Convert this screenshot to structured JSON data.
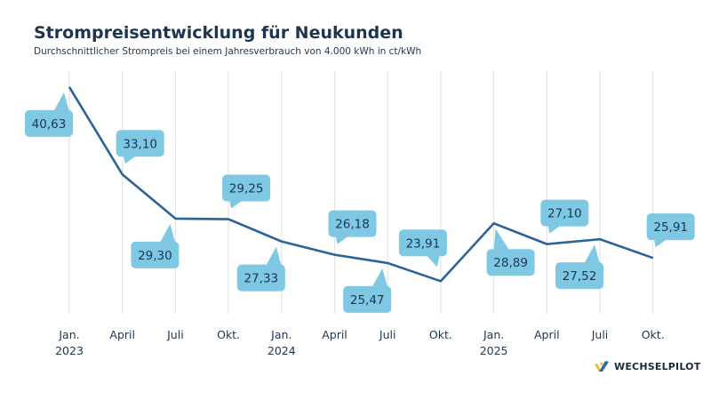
{
  "title": "Strompreisentwicklung für Neukunden",
  "subtitle": "Durchschnittlicher Strompreis bei einem Jahresverbrauch von 4.000 kWh in ct/kWh",
  "brand": {
    "name": "WECHSELPILOT",
    "colors": {
      "yellow": "#f5b82e",
      "blue": "#2a6cb3"
    }
  },
  "colors": {
    "line": "#2a6496",
    "callout": "#7ec8e3",
    "callout_text": "#1e3550",
    "grid": "#e3e3e3"
  },
  "chart_data": {
    "type": "line",
    "title": "Strompreisentwicklung für Neukunden",
    "subtitle": "Durchschnittlicher Strompreis bei einem Jahresverbrauch von 4.000 kWh in ct/kWh",
    "categories": [
      "Jan. 2023",
      "April",
      "Juli",
      "Okt.",
      "Jan. 2024",
      "April",
      "Juli",
      "Okt.",
      "Jan. 2025",
      "April",
      "Juli",
      "Okt."
    ],
    "tick_labels": [
      [
        "Jan.",
        "2023"
      ],
      [
        "April"
      ],
      [
        "Juli"
      ],
      [
        "Okt."
      ],
      [
        "Jan.",
        "2024"
      ],
      [
        "April"
      ],
      [
        "Juli"
      ],
      [
        "Okt."
      ],
      [
        "Jan.",
        "2025"
      ],
      [
        "April"
      ],
      [
        "Juli"
      ],
      [
        "Okt."
      ]
    ],
    "values": [
      40.63,
      33.1,
      29.3,
      29.25,
      27.33,
      26.18,
      25.47,
      23.91,
      28.89,
      27.1,
      27.52,
      25.91
    ],
    "data_labels": [
      "40,63",
      "33,10",
      "29,30",
      "29,25",
      "27,33",
      "26,18",
      "25,47",
      "23,91",
      "28,89",
      "27,10",
      "27,52",
      "25,91"
    ],
    "label_placement": [
      "below-left",
      "above-right",
      "below-left",
      "above-right",
      "below-left",
      "above-right",
      "below-left",
      "above-left",
      "below-right",
      "above-right",
      "below-left",
      "above-right"
    ],
    "ylim": [
      21.1,
      42
    ],
    "grid": "vertical",
    "legend": "none"
  }
}
